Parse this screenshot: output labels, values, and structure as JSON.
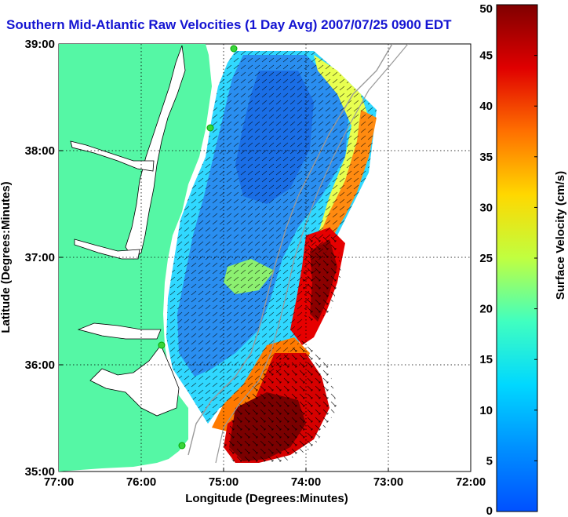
{
  "title": "Southern Mid-Atlantic Raw Velocities (1 Day Avg) 2007/07/25 0900 EDT",
  "chart_data": {
    "type": "heatmap",
    "xlabel": "Longitude (Degrees:Minutes)",
    "ylabel": "Latitude (Degrees:Minutes)",
    "x_ticks": [
      "77:00",
      "76:00",
      "75:00",
      "74:00",
      "73:00",
      "72:00"
    ],
    "y_ticks": [
      "39:00",
      "38:00",
      "37:00",
      "36:00",
      "35:00"
    ],
    "x_range_deg_west": [
      77,
      72
    ],
    "y_range_deg_north": [
      35,
      39
    ],
    "grid": "dotted",
    "colorbar": {
      "label": "Surface Velocity (cm/s)",
      "range": [
        0,
        50
      ],
      "ticks": [
        "0",
        "5",
        "10",
        "15",
        "20",
        "25",
        "30",
        "35",
        "40",
        "45",
        "50"
      ],
      "colormap": "jet"
    },
    "colors": {
      "land": "#55f7a5",
      "water_background": "#ffffff",
      "title": "#1414d2",
      "site_marker": "#3ad43a"
    }
  }
}
